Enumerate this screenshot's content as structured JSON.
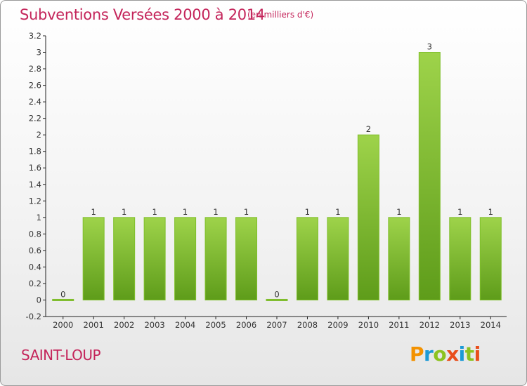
{
  "title": "Subventions Versées 2000 à 2014",
  "subtitle": "(en milliers d'€)",
  "commune": "SAINT-LOUP",
  "brand": [
    "P",
    "r",
    "o",
    "x",
    "i",
    "t",
    "i"
  ],
  "colors": {
    "accent": "#c4245a",
    "bar_top": "#9ed34a",
    "bar_bottom": "#5e9c1a"
  },
  "chart_data": {
    "type": "bar",
    "title": "Subventions Versées 2000 à 2014",
    "subtitle": "(en milliers d'€)",
    "xlabel": "",
    "ylabel": "",
    "categories": [
      "2000",
      "2001",
      "2002",
      "2003",
      "2004",
      "2005",
      "2006",
      "2007",
      "2008",
      "2009",
      "2010",
      "2011",
      "2012",
      "2013",
      "2014"
    ],
    "values": [
      0,
      1,
      1,
      1,
      1,
      1,
      1,
      0,
      1,
      1,
      2,
      1,
      3,
      1,
      1
    ],
    "data_labels": [
      "0",
      "1",
      "1",
      "1",
      "1",
      "1",
      "1",
      "0",
      "1",
      "1",
      "2",
      "1",
      "3",
      "1",
      "1"
    ],
    "ylim": [
      -0.2,
      3.2
    ],
    "yticks": [
      "-0.2",
      "0",
      "0.2",
      "0.4",
      "0.6",
      "0.8",
      "1",
      "1.2",
      "1.4",
      "1.6",
      "1.8",
      "2",
      "2.2",
      "2.4",
      "2.6",
      "2.8",
      "3",
      "3.2"
    ],
    "ytick_values": [
      -0.2,
      0,
      0.2,
      0.4,
      0.6,
      0.8,
      1,
      1.2,
      1.4,
      1.6,
      1.8,
      2,
      2.2,
      2.4,
      2.6,
      2.8,
      3,
      3.2
    ],
    "grid": false,
    "legend": "none"
  }
}
